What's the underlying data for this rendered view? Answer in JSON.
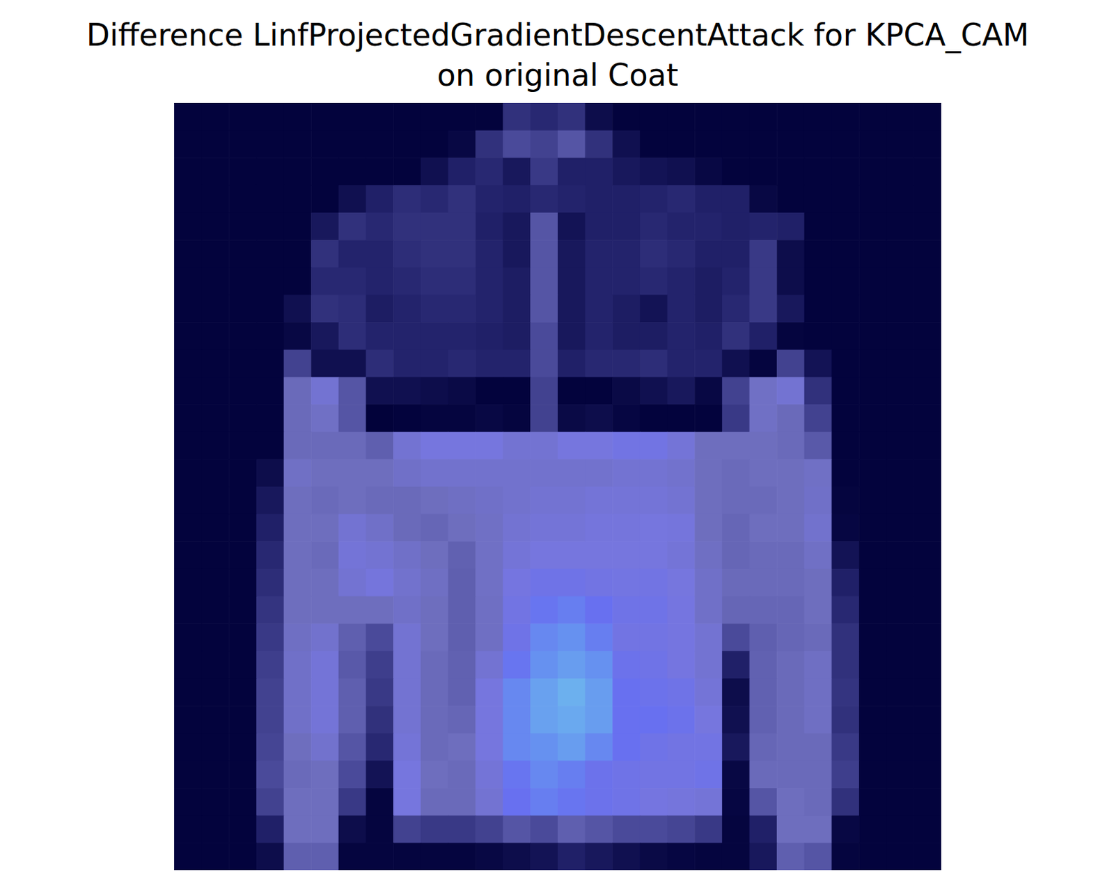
{
  "chart_data": {
    "type": "heatmap",
    "title": "Difference LinfProjectedGradientDescentAttack for KPCA_CAM\non original Coat",
    "tick_labels": false,
    "xlim": [
      0,
      28
    ],
    "ylim": [
      0,
      28
    ],
    "cells": [
      [
        0.02,
        0.02,
        0.02,
        0.02,
        0.02,
        0.02,
        0.02,
        0.02,
        0.02,
        0.02,
        0.02,
        0.02,
        0.3,
        0.25,
        0.3,
        0.08,
        0.02,
        0.02,
        0.02,
        0.02,
        0.02,
        0.02,
        0.02,
        0.02,
        0.02,
        0.02,
        0.02,
        0.02
      ],
      [
        0.02,
        0.02,
        0.02,
        0.02,
        0.02,
        0.02,
        0.02,
        0.02,
        0.02,
        0.02,
        0.05,
        0.3,
        0.45,
        0.4,
        0.5,
        0.3,
        0.1,
        0.02,
        0.02,
        0.02,
        0.02,
        0.02,
        0.02,
        0.02,
        0.02,
        0.02,
        0.02,
        0.02
      ],
      [
        0.02,
        0.02,
        0.02,
        0.02,
        0.02,
        0.02,
        0.02,
        0.02,
        0.02,
        0.1,
        0.2,
        0.25,
        0.15,
        0.35,
        0.2,
        0.2,
        0.15,
        0.12,
        0.1,
        0.05,
        0.02,
        0.02,
        0.02,
        0.02,
        0.02,
        0.02,
        0.02,
        0.02
      ],
      [
        0.02,
        0.02,
        0.02,
        0.02,
        0.02,
        0.02,
        0.1,
        0.2,
        0.28,
        0.25,
        0.3,
        0.22,
        0.2,
        0.25,
        0.22,
        0.2,
        0.2,
        0.22,
        0.25,
        0.2,
        0.2,
        0.05,
        0.02,
        0.02,
        0.02,
        0.02,
        0.02,
        0.02
      ],
      [
        0.02,
        0.02,
        0.02,
        0.02,
        0.02,
        0.15,
        0.3,
        0.25,
        0.3,
        0.3,
        0.3,
        0.2,
        0.15,
        0.5,
        0.12,
        0.2,
        0.2,
        0.25,
        0.22,
        0.22,
        0.2,
        0.22,
        0.2,
        0.02,
        0.02,
        0.02,
        0.02,
        0.02
      ],
      [
        0.02,
        0.02,
        0.02,
        0.02,
        0.02,
        0.3,
        0.22,
        0.22,
        0.28,
        0.3,
        0.3,
        0.22,
        0.15,
        0.5,
        0.15,
        0.22,
        0.22,
        0.28,
        0.25,
        0.2,
        0.2,
        0.35,
        0.08,
        0.02,
        0.02,
        0.02,
        0.02,
        0.02
      ],
      [
        0.02,
        0.02,
        0.02,
        0.02,
        0.02,
        0.25,
        0.25,
        0.22,
        0.25,
        0.28,
        0.28,
        0.22,
        0.18,
        0.5,
        0.15,
        0.22,
        0.22,
        0.25,
        0.22,
        0.18,
        0.22,
        0.35,
        0.08,
        0.02,
        0.02,
        0.02,
        0.02,
        0.02
      ],
      [
        0.02,
        0.02,
        0.02,
        0.02,
        0.1,
        0.3,
        0.28,
        0.18,
        0.22,
        0.25,
        0.25,
        0.22,
        0.18,
        0.5,
        0.15,
        0.22,
        0.18,
        0.12,
        0.22,
        0.18,
        0.25,
        0.35,
        0.15,
        0.02,
        0.02,
        0.02,
        0.02,
        0.02
      ],
      [
        0.02,
        0.02,
        0.02,
        0.02,
        0.05,
        0.15,
        0.28,
        0.22,
        0.22,
        0.22,
        0.22,
        0.2,
        0.18,
        0.45,
        0.15,
        0.22,
        0.18,
        0.18,
        0.22,
        0.2,
        0.3,
        0.2,
        0.03,
        0.02,
        0.02,
        0.02,
        0.02,
        0.02
      ],
      [
        0.02,
        0.02,
        0.02,
        0.02,
        0.4,
        0.1,
        0.1,
        0.28,
        0.22,
        0.22,
        0.25,
        0.22,
        0.22,
        0.45,
        0.2,
        0.25,
        0.25,
        0.28,
        0.22,
        0.22,
        0.1,
        0.03,
        0.4,
        0.12,
        0.02,
        0.02,
        0.02,
        0.02
      ],
      [
        0.02,
        0.02,
        0.02,
        0.02,
        0.6,
        0.7,
        0.5,
        0.1,
        0.1,
        0.08,
        0.06,
        0.02,
        0.02,
        0.4,
        0.02,
        0.02,
        0.06,
        0.1,
        0.15,
        0.05,
        0.4,
        0.65,
        0.7,
        0.3,
        0.02,
        0.02,
        0.02,
        0.02
      ],
      [
        0.02,
        0.02,
        0.02,
        0.02,
        0.6,
        0.65,
        0.5,
        0.01,
        0.02,
        0.03,
        0.03,
        0.05,
        0.03,
        0.4,
        0.06,
        0.08,
        0.04,
        0.02,
        0.02,
        0.02,
        0.35,
        0.65,
        0.6,
        0.4,
        0.02,
        0.02,
        0.02,
        0.02
      ],
      [
        0.02,
        0.02,
        0.02,
        0.02,
        0.6,
        0.6,
        0.6,
        0.55,
        0.7,
        0.75,
        0.75,
        0.75,
        0.7,
        0.7,
        0.75,
        0.75,
        0.78,
        0.78,
        0.72,
        0.62,
        0.62,
        0.62,
        0.6,
        0.52,
        0.02,
        0.02,
        0.02,
        0.02
      ],
      [
        0.02,
        0.02,
        0.02,
        0.08,
        0.65,
        0.62,
        0.62,
        0.62,
        0.66,
        0.68,
        0.68,
        0.68,
        0.68,
        0.68,
        0.68,
        0.68,
        0.7,
        0.7,
        0.68,
        0.62,
        0.6,
        0.62,
        0.62,
        0.65,
        0.02,
        0.02,
        0.02,
        0.02
      ],
      [
        0.02,
        0.02,
        0.02,
        0.15,
        0.62,
        0.6,
        0.62,
        0.6,
        0.6,
        0.62,
        0.64,
        0.66,
        0.68,
        0.7,
        0.7,
        0.72,
        0.72,
        0.72,
        0.7,
        0.62,
        0.6,
        0.6,
        0.62,
        0.66,
        0.03,
        0.02,
        0.02,
        0.02
      ],
      [
        0.02,
        0.02,
        0.02,
        0.2,
        0.62,
        0.62,
        0.7,
        0.66,
        0.6,
        0.58,
        0.62,
        0.65,
        0.7,
        0.72,
        0.72,
        0.74,
        0.74,
        0.75,
        0.74,
        0.62,
        0.58,
        0.62,
        0.62,
        0.68,
        0.04,
        0.02,
        0.02,
        0.02
      ],
      [
        0.02,
        0.02,
        0.02,
        0.25,
        0.62,
        0.6,
        0.72,
        0.7,
        0.66,
        0.62,
        0.56,
        0.65,
        0.72,
        0.75,
        0.75,
        0.75,
        0.75,
        0.75,
        0.72,
        0.64,
        0.58,
        0.6,
        0.6,
        0.65,
        0.12,
        0.02,
        0.02,
        0.02
      ],
      [
        0.02,
        0.02,
        0.02,
        0.28,
        0.62,
        0.62,
        0.7,
        0.74,
        0.68,
        0.64,
        0.55,
        0.65,
        0.76,
        0.8,
        0.8,
        0.78,
        0.77,
        0.78,
        0.75,
        0.66,
        0.6,
        0.6,
        0.6,
        0.62,
        0.2,
        0.02,
        0.02,
        0.02
      ],
      [
        0.02,
        0.02,
        0.02,
        0.32,
        0.62,
        0.62,
        0.62,
        0.62,
        0.66,
        0.62,
        0.55,
        0.64,
        0.78,
        0.86,
        0.88,
        0.85,
        0.8,
        0.8,
        0.76,
        0.66,
        0.58,
        0.58,
        0.58,
        0.62,
        0.25,
        0.02,
        0.02,
        0.02
      ],
      [
        0.02,
        0.02,
        0.02,
        0.35,
        0.64,
        0.68,
        0.55,
        0.45,
        0.7,
        0.62,
        0.55,
        0.64,
        0.8,
        0.9,
        0.92,
        0.88,
        0.78,
        0.78,
        0.76,
        0.7,
        0.45,
        0.55,
        0.58,
        0.6,
        0.3,
        0.02,
        0.02,
        0.02
      ],
      [
        0.02,
        0.02,
        0.02,
        0.38,
        0.66,
        0.72,
        0.52,
        0.38,
        0.7,
        0.6,
        0.56,
        0.7,
        0.86,
        0.92,
        0.95,
        0.92,
        0.82,
        0.8,
        0.76,
        0.7,
        0.2,
        0.56,
        0.6,
        0.64,
        0.3,
        0.02,
        0.02,
        0.02
      ],
      [
        0.02,
        0.02,
        0.02,
        0.4,
        0.66,
        0.72,
        0.55,
        0.35,
        0.7,
        0.6,
        0.56,
        0.75,
        0.9,
        0.96,
        1,
        0.95,
        0.85,
        0.82,
        0.8,
        0.72,
        0.08,
        0.56,
        0.6,
        0.64,
        0.32,
        0.02,
        0.02,
        0.02
      ],
      [
        0.02,
        0.02,
        0.02,
        0.4,
        0.66,
        0.72,
        0.55,
        0.3,
        0.7,
        0.6,
        0.58,
        0.75,
        0.9,
        0.96,
        0.98,
        0.95,
        0.85,
        0.85,
        0.82,
        0.75,
        0.1,
        0.56,
        0.6,
        0.64,
        0.3,
        0.02,
        0.02,
        0.02
      ],
      [
        0.02,
        0.02,
        0.02,
        0.42,
        0.62,
        0.68,
        0.5,
        0.25,
        0.72,
        0.6,
        0.62,
        0.75,
        0.9,
        0.92,
        0.95,
        0.9,
        0.85,
        0.8,
        0.78,
        0.78,
        0.15,
        0.58,
        0.6,
        0.6,
        0.35,
        0.02,
        0.02,
        0.02
      ],
      [
        0.02,
        0.02,
        0.02,
        0.45,
        0.6,
        0.62,
        0.45,
        0.12,
        0.75,
        0.62,
        0.6,
        0.72,
        0.86,
        0.9,
        0.88,
        0.82,
        0.8,
        0.78,
        0.78,
        0.8,
        0.05,
        0.6,
        0.6,
        0.6,
        0.38,
        0.02,
        0.02,
        0.02
      ],
      [
        0.02,
        0.02,
        0.02,
        0.4,
        0.62,
        0.62,
        0.35,
        0.03,
        0.75,
        0.6,
        0.6,
        0.7,
        0.85,
        0.88,
        0.86,
        0.82,
        0.8,
        0.76,
        0.74,
        0.72,
        0.04,
        0.5,
        0.62,
        0.6,
        0.3,
        0.02,
        0.02,
        0.02
      ],
      [
        0.02,
        0.02,
        0.02,
        0.2,
        0.62,
        0.62,
        0.08,
        0.03,
        0.4,
        0.35,
        0.35,
        0.4,
        0.5,
        0.45,
        0.55,
        0.5,
        0.45,
        0.45,
        0.42,
        0.35,
        0.03,
        0.2,
        0.62,
        0.62,
        0.05,
        0.02,
        0.02,
        0.02
      ],
      [
        0.02,
        0.02,
        0.02,
        0.08,
        0.55,
        0.55,
        0.03,
        0.03,
        0.03,
        0.03,
        0.03,
        0.05,
        0.08,
        0.12,
        0.2,
        0.15,
        0.1,
        0.06,
        0.04,
        0.03,
        0.03,
        0.15,
        0.55,
        0.5,
        0.03,
        0.02,
        0.02,
        0.02
      ]
    ]
  }
}
